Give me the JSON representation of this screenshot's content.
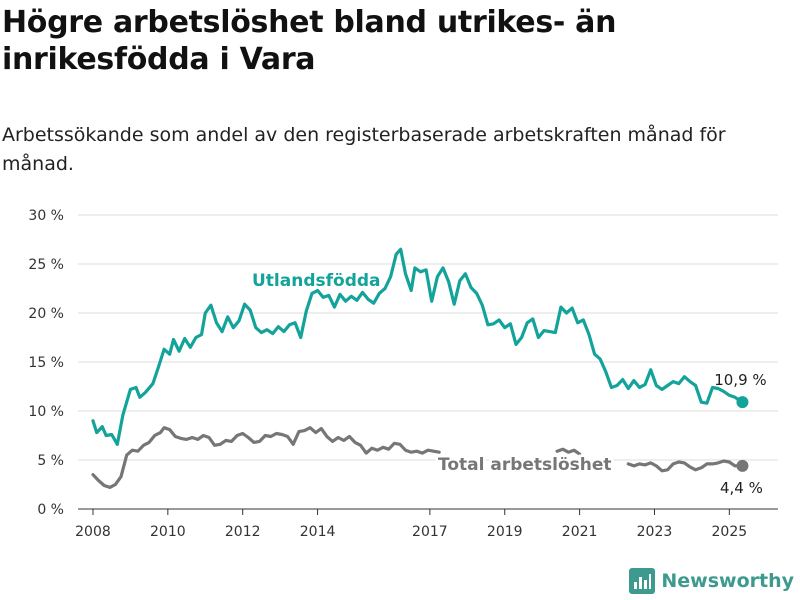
{
  "title": "Högre arbetslöshet bland utrikes- än inrikesfödda i Vara",
  "subtitle": "Arbetssökande som andel av den registerbaserade arbetskraften månad för månad.",
  "brand": {
    "name": "Newsworthy",
    "icon": "newsworthy-logo-icon",
    "color": "#3e9a8e"
  },
  "chart_data": {
    "type": "line",
    "title": "Högre arbetslöshet bland utrikes- än inrikesfödda i Vara",
    "subtitle": "Arbetssökande som andel av den registerbaserade arbetskraften månad för månad.",
    "xlabel": "",
    "ylabel": "",
    "xlim": [
      2007.6,
      2026.3
    ],
    "ylim": [
      0,
      30
    ],
    "yticks": [
      0,
      5,
      10,
      15,
      20,
      25,
      30
    ],
    "ytick_labels": [
      "0 %",
      "5 %",
      "10 %",
      "15 %",
      "20 %",
      "25 %",
      "30 %"
    ],
    "xticks": [
      2008,
      2010,
      2012,
      2014,
      2017,
      2019,
      2021,
      2023,
      2025
    ],
    "xtick_labels": [
      "2008",
      "2010",
      "2012",
      "2014",
      "2017",
      "2019",
      "2021",
      "2023",
      "2025"
    ],
    "grid": true,
    "legend": "inline labels",
    "series": [
      {
        "name": "Utlandsfödda",
        "color": "#13a39a",
        "end_label": "10,9 %",
        "points": [
          [
            2008.0,
            9.0
          ],
          [
            2008.1,
            7.8
          ],
          [
            2008.25,
            8.4
          ],
          [
            2008.35,
            7.5
          ],
          [
            2008.5,
            7.6
          ],
          [
            2008.65,
            6.6
          ],
          [
            2008.8,
            9.6
          ],
          [
            2009.0,
            12.2
          ],
          [
            2009.15,
            12.4
          ],
          [
            2009.25,
            11.4
          ],
          [
            2009.4,
            11.9
          ],
          [
            2009.6,
            12.8
          ],
          [
            2009.75,
            14.5
          ],
          [
            2009.9,
            16.3
          ],
          [
            2010.05,
            15.8
          ],
          [
            2010.15,
            17.3
          ],
          [
            2010.3,
            16.1
          ],
          [
            2010.45,
            17.4
          ],
          [
            2010.6,
            16.5
          ],
          [
            2010.75,
            17.5
          ],
          [
            2010.9,
            17.8
          ],
          [
            2011.0,
            20.0
          ],
          [
            2011.15,
            20.8
          ],
          [
            2011.3,
            19.0
          ],
          [
            2011.45,
            18.1
          ],
          [
            2011.6,
            19.6
          ],
          [
            2011.75,
            18.5
          ],
          [
            2011.9,
            19.2
          ],
          [
            2012.05,
            20.9
          ],
          [
            2012.2,
            20.3
          ],
          [
            2012.35,
            18.5
          ],
          [
            2012.5,
            18.0
          ],
          [
            2012.65,
            18.3
          ],
          [
            2012.8,
            17.9
          ],
          [
            2012.95,
            18.6
          ],
          [
            2013.1,
            18.1
          ],
          [
            2013.25,
            18.8
          ],
          [
            2013.4,
            19.0
          ],
          [
            2013.55,
            17.5
          ],
          [
            2013.7,
            20.2
          ],
          [
            2013.85,
            22.0
          ],
          [
            2014.0,
            22.3
          ],
          [
            2014.15,
            21.6
          ],
          [
            2014.3,
            21.8
          ],
          [
            2014.45,
            20.6
          ],
          [
            2014.6,
            21.9
          ],
          [
            2014.75,
            21.2
          ],
          [
            2014.9,
            21.7
          ],
          [
            2015.05,
            21.3
          ],
          [
            2015.2,
            22.1
          ],
          [
            2015.35,
            21.4
          ],
          [
            2015.5,
            21.0
          ],
          [
            2015.65,
            22.0
          ],
          [
            2015.8,
            22.5
          ],
          [
            2015.95,
            23.7
          ],
          [
            2016.1,
            26.0
          ],
          [
            2016.22,
            26.5
          ],
          [
            2016.35,
            24.0
          ],
          [
            2016.5,
            22.3
          ],
          [
            2016.6,
            24.6
          ],
          [
            2016.75,
            24.2
          ],
          [
            2016.9,
            24.4
          ],
          [
            2017.05,
            21.2
          ],
          [
            2017.2,
            23.7
          ],
          [
            2017.35,
            24.6
          ],
          [
            2017.5,
            23.2
          ],
          [
            2017.65,
            20.9
          ],
          [
            2017.8,
            23.3
          ],
          [
            2017.95,
            24.0
          ],
          [
            2018.1,
            22.6
          ],
          [
            2018.25,
            22.0
          ],
          [
            2018.4,
            20.8
          ],
          [
            2018.55,
            18.8
          ],
          [
            2018.7,
            18.9
          ],
          [
            2018.85,
            19.3
          ],
          [
            2019.0,
            18.5
          ],
          [
            2019.15,
            18.9
          ],
          [
            2019.3,
            16.8
          ],
          [
            2019.45,
            17.5
          ],
          [
            2019.6,
            19.0
          ],
          [
            2019.75,
            19.4
          ],
          [
            2019.9,
            17.5
          ],
          [
            2020.05,
            18.2
          ],
          [
            2020.2,
            18.1
          ],
          [
            2020.35,
            18.0
          ],
          [
            2020.5,
            20.6
          ],
          [
            2020.65,
            20.0
          ],
          [
            2020.8,
            20.5
          ],
          [
            2020.95,
            19.0
          ],
          [
            2021.1,
            19.3
          ],
          [
            2021.25,
            17.8
          ],
          [
            2021.4,
            15.8
          ],
          [
            2021.55,
            15.3
          ],
          [
            2021.7,
            14.0
          ],
          [
            2021.85,
            12.4
          ],
          [
            2022.0,
            12.6
          ],
          [
            2022.15,
            13.2
          ],
          [
            2022.3,
            12.3
          ],
          [
            2022.45,
            13.1
          ],
          [
            2022.6,
            12.4
          ],
          [
            2022.75,
            12.7
          ],
          [
            2022.9,
            14.2
          ],
          [
            2023.05,
            12.6
          ],
          [
            2023.2,
            12.2
          ],
          [
            2023.35,
            12.6
          ],
          [
            2023.5,
            13.0
          ],
          [
            2023.65,
            12.8
          ],
          [
            2023.8,
            13.5
          ],
          [
            2023.95,
            13.0
          ],
          [
            2024.1,
            12.6
          ],
          [
            2024.25,
            10.9
          ],
          [
            2024.4,
            10.8
          ],
          [
            2024.55,
            12.4
          ],
          [
            2024.7,
            12.3
          ],
          [
            2024.85,
            12.0
          ],
          [
            2025.0,
            11.6
          ],
          [
            2025.15,
            11.4
          ],
          [
            2025.35,
            10.9
          ]
        ]
      },
      {
        "name": "Total arbetslöshet",
        "color": "#767676",
        "end_label": "4,4 %",
        "points": [
          [
            2008.0,
            3.5
          ],
          [
            2008.15,
            2.9
          ],
          [
            2008.3,
            2.4
          ],
          [
            2008.45,
            2.2
          ],
          [
            2008.6,
            2.5
          ],
          [
            2008.75,
            3.3
          ],
          [
            2008.9,
            5.5
          ],
          [
            2009.05,
            6.0
          ],
          [
            2009.2,
            5.9
          ],
          [
            2009.35,
            6.5
          ],
          [
            2009.5,
            6.8
          ],
          [
            2009.65,
            7.5
          ],
          [
            2009.8,
            7.8
          ],
          [
            2009.9,
            8.3
          ],
          [
            2010.05,
            8.1
          ],
          [
            2010.2,
            7.4
          ],
          [
            2010.35,
            7.2
          ],
          [
            2010.5,
            7.1
          ],
          [
            2010.65,
            7.3
          ],
          [
            2010.8,
            7.1
          ],
          [
            2010.95,
            7.5
          ],
          [
            2011.1,
            7.3
          ],
          [
            2011.25,
            6.5
          ],
          [
            2011.4,
            6.6
          ],
          [
            2011.55,
            7.0
          ],
          [
            2011.7,
            6.9
          ],
          [
            2011.85,
            7.5
          ],
          [
            2012.0,
            7.7
          ],
          [
            2012.15,
            7.3
          ],
          [
            2012.3,
            6.8
          ],
          [
            2012.45,
            6.9
          ],
          [
            2012.6,
            7.5
          ],
          [
            2012.75,
            7.4
          ],
          [
            2012.9,
            7.7
          ],
          [
            2013.05,
            7.6
          ],
          [
            2013.2,
            7.4
          ],
          [
            2013.35,
            6.6
          ],
          [
            2013.5,
            7.9
          ],
          [
            2013.65,
            8.0
          ],
          [
            2013.8,
            8.3
          ],
          [
            2013.95,
            7.8
          ],
          [
            2014.1,
            8.2
          ],
          [
            2014.25,
            7.4
          ],
          [
            2014.4,
            6.9
          ],
          [
            2014.55,
            7.3
          ],
          [
            2014.7,
            7.0
          ],
          [
            2014.85,
            7.4
          ],
          [
            2015.0,
            6.8
          ],
          [
            2015.15,
            6.5
          ],
          [
            2015.3,
            5.7
          ],
          [
            2015.45,
            6.2
          ],
          [
            2015.6,
            6.0
          ],
          [
            2015.75,
            6.3
          ],
          [
            2015.9,
            6.1
          ],
          [
            2016.05,
            6.7
          ],
          [
            2016.2,
            6.6
          ],
          [
            2016.35,
            6.0
          ],
          [
            2016.5,
            5.8
          ],
          [
            2016.65,
            5.9
          ],
          [
            2016.8,
            5.7
          ],
          [
            2016.95,
            6.0
          ],
          [
            2017.1,
            5.9
          ],
          [
            2017.25,
            5.8
          ],
          [
            2020.4,
            5.9
          ],
          [
            2020.55,
            6.1
          ],
          [
            2020.7,
            5.8
          ],
          [
            2020.85,
            6.0
          ],
          [
            2021.0,
            5.6
          ],
          [
            2022.3,
            4.6
          ],
          [
            2022.45,
            4.4
          ],
          [
            2022.6,
            4.6
          ],
          [
            2022.75,
            4.5
          ],
          [
            2022.9,
            4.7
          ],
          [
            2023.05,
            4.4
          ],
          [
            2023.2,
            3.9
          ],
          [
            2023.35,
            4.0
          ],
          [
            2023.5,
            4.6
          ],
          [
            2023.65,
            4.8
          ],
          [
            2023.8,
            4.7
          ],
          [
            2023.95,
            4.3
          ],
          [
            2024.1,
            4.0
          ],
          [
            2024.25,
            4.2
          ],
          [
            2024.4,
            4.6
          ],
          [
            2024.55,
            4.6
          ],
          [
            2024.7,
            4.7
          ],
          [
            2024.85,
            4.9
          ],
          [
            2025.0,
            4.8
          ],
          [
            2025.15,
            4.4
          ],
          [
            2025.35,
            4.4
          ]
        ]
      }
    ]
  }
}
